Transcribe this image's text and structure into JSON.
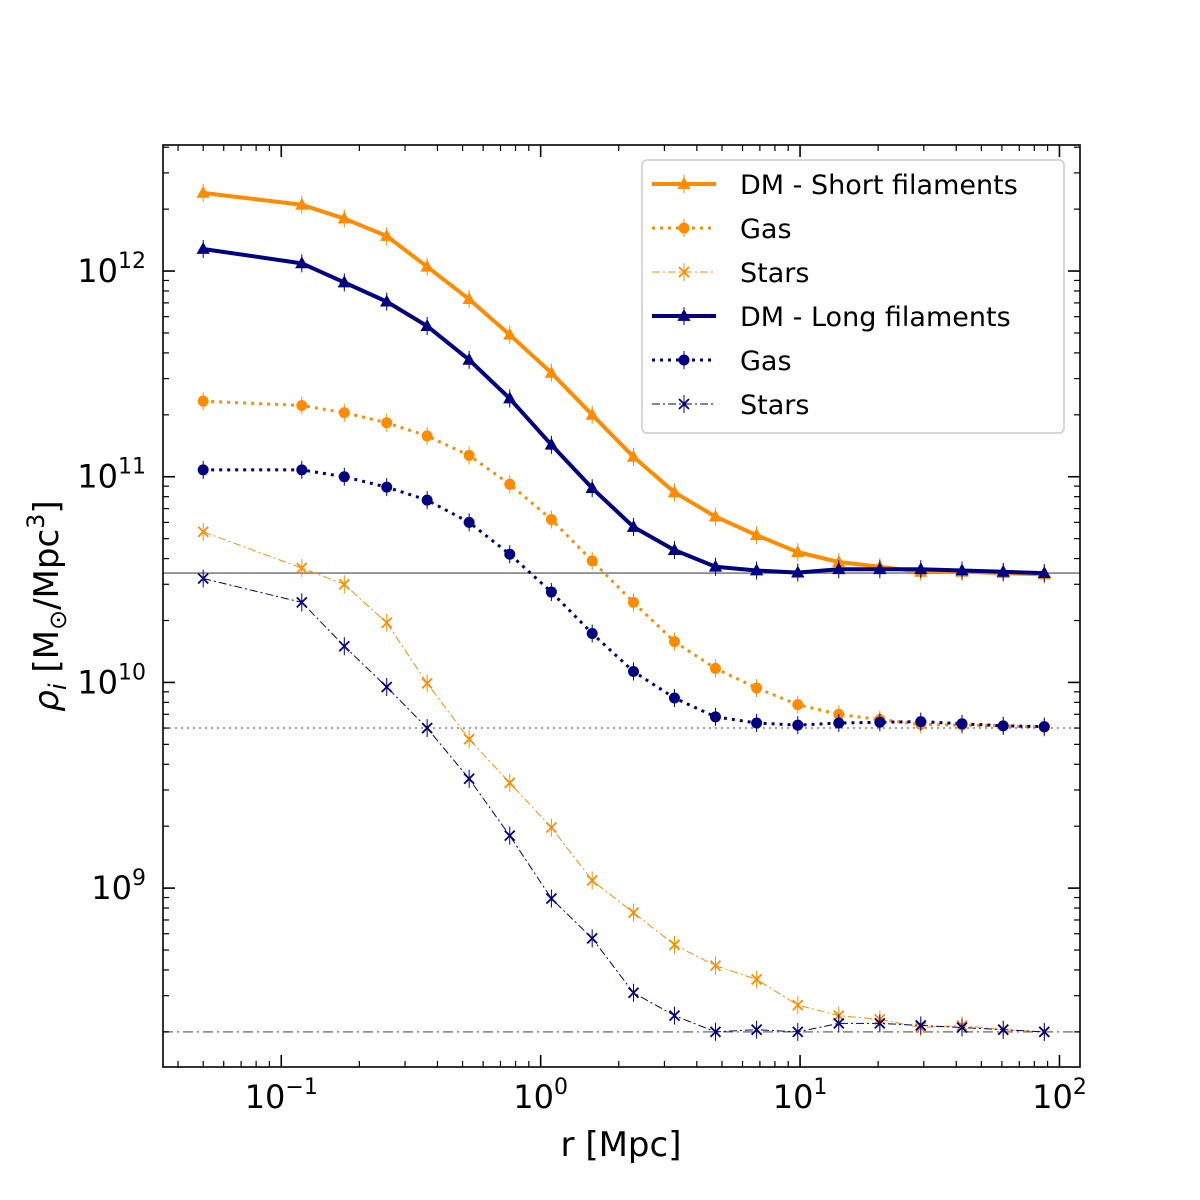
{
  "chart_data": {
    "type": "line",
    "xscale": "log",
    "yscale": "log",
    "xlim": [
      0.035,
      120
    ],
    "ylim": [
      135000000.0,
      4100000000000.0
    ],
    "xlabel": "r [Mpc]",
    "ylabel_parts": {
      "rho": "ρ",
      "sub": "i",
      "unit": " [M",
      "sun": "⊙",
      "unit2": "/Mpc",
      "exp": "3",
      "close": "]"
    },
    "x": [
      0.05,
      0.12,
      0.175,
      0.255,
      0.365,
      0.53,
      0.76,
      1.1,
      1.58,
      2.28,
      3.28,
      4.72,
      6.8,
      9.8,
      14.1,
      20.3,
      29.2,
      42.1,
      60.7,
      87.4
    ],
    "x_ticks": [
      {
        "base": "10",
        "exp": "−1",
        "value": 0.1
      },
      {
        "base": "10",
        "exp": "0",
        "value": 1
      },
      {
        "base": "10",
        "exp": "1",
        "value": 10
      },
      {
        "base": "10",
        "exp": "2",
        "value": 100
      }
    ],
    "y_ticks": [
      {
        "base": "10",
        "exp": "9",
        "value": 1000000000.0
      },
      {
        "base": "10",
        "exp": "10",
        "value": 10000000000.0
      },
      {
        "base": "10",
        "exp": "11",
        "value": 100000000000.0
      },
      {
        "base": "10",
        "exp": "12",
        "value": 1000000000000.0
      }
    ],
    "reference_lines": [
      {
        "value": 34000000000.0,
        "style": "solid",
        "color": "#808080"
      },
      {
        "value": 6000000000.0,
        "style": "dotted",
        "color": "#808080"
      },
      {
        "value": 200000000.0,
        "style": "dashdot",
        "color": "#808080"
      }
    ],
    "legend_position": "top-right",
    "series": [
      {
        "name": "DM - Short filaments",
        "color": "#ff8c00",
        "linestyle": "solid",
        "marker": "triangle",
        "width": 4,
        "values": [
          2400000000000.0,
          2100000000000.0,
          1800000000000.0,
          1480000000000.0,
          1050000000000.0,
          730000000000.0,
          490000000000.0,
          320000000000.0,
          200000000000.0,
          125000000000.0,
          84000000000.0,
          64000000000.0,
          52000000000.0,
          43000000000.0,
          38500000000.0,
          36500000000.0,
          34500000000.0,
          34500000000.0,
          34000000000.0,
          33500000000.0
        ]
      },
      {
        "name": "Gas",
        "color": "#ff8c00",
        "linestyle": "dotted",
        "marker": "circle",
        "width": 3,
        "values": [
          233000000000.0,
          222000000000.0,
          205000000000.0,
          183000000000.0,
          158000000000.0,
          127000000000.0,
          92000000000.0,
          62000000000.0,
          39000000000.0,
          24500000000.0,
          15800000000.0,
          11700000000.0,
          9400000000.0,
          7800000000.0,
          7000000000.0,
          6600000000.0,
          6250000000.0,
          6200000000.0,
          6150000000.0,
          6050000000.0
        ]
      },
      {
        "name": "Stars",
        "color": "#ff8c00",
        "linestyle": "dashdot",
        "marker": "x",
        "width": 1,
        "values": [
          54000000000.0,
          36000000000.0,
          30000000000.0,
          19500000000.0,
          9900000000.0,
          5300000000.0,
          3250000000.0,
          1970000000.0,
          1090000000.0,
          760000000.0,
          530000000.0,
          420000000.0,
          360000000.0,
          270000000.0,
          240000000.0,
          230000000.0,
          210000000.0,
          215000000.0,
          205000000.0,
          200000000.0
        ]
      },
      {
        "name": "DM - Long filaments",
        "color": "#000080",
        "linestyle": "solid",
        "marker": "triangle",
        "width": 4,
        "values": [
          1280000000000.0,
          1090000000000.0,
          880000000000.0,
          710000000000.0,
          540000000000.0,
          370000000000.0,
          240000000000.0,
          143000000000.0,
          88000000000.0,
          57000000000.0,
          44000000000.0,
          36500000000.0,
          35000000000.0,
          34200000000.0,
          35500000000.0,
          35500000000.0,
          35500000000.0,
          35000000000.0,
          34500000000.0,
          34000000000.0
        ]
      },
      {
        "name": "Gas",
        "color": "#000080",
        "linestyle": "dotted",
        "marker": "circle",
        "width": 3,
        "values": [
          108000000000.0,
          108000000000.0,
          100000000000.0,
          89000000000.0,
          77000000000.0,
          60000000000.0,
          42000000000.0,
          27500000000.0,
          17300000000.0,
          11300000000.0,
          8400000000.0,
          6800000000.0,
          6350000000.0,
          6200000000.0,
          6350000000.0,
          6400000000.0,
          6450000000.0,
          6300000000.0,
          6150000000.0,
          6100000000.0
        ]
      },
      {
        "name": "Stars",
        "color": "#000080",
        "linestyle": "dashdot",
        "marker": "x",
        "width": 1,
        "values": [
          32000000000.0,
          24500000000.0,
          15000000000.0,
          9500000000.0,
          6000000000.0,
          3400000000.0,
          1800000000.0,
          890000000.0,
          570000000.0,
          310000000.0,
          240000000.0,
          200000000.0,
          205000000.0,
          200000000.0,
          220000000.0,
          220000000.0,
          215000000.0,
          210000000.0,
          205000000.0,
          200000000.0
        ]
      }
    ]
  }
}
